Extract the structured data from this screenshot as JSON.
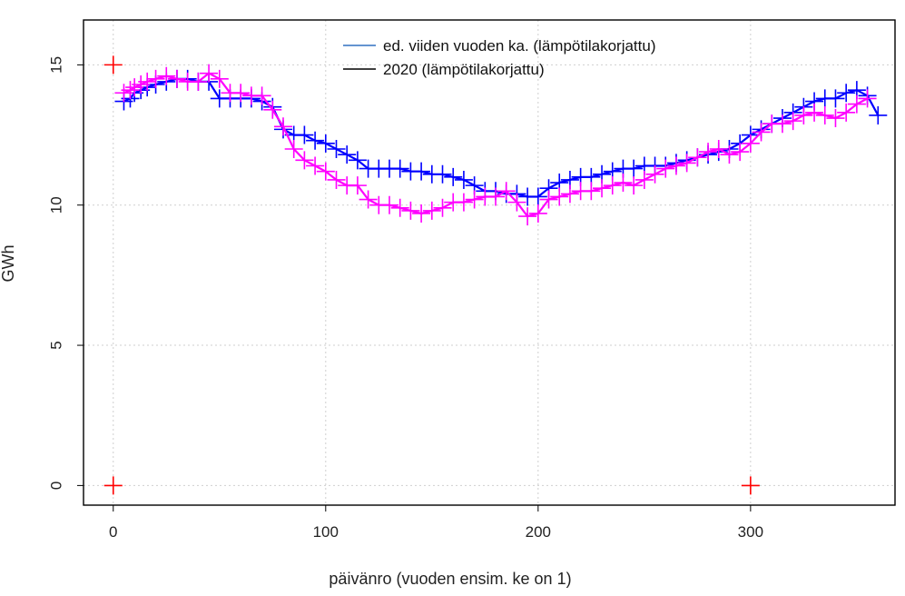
{
  "chart_data": {
    "type": "line",
    "xlabel": "päivänro (vuoden ensim. ke on 1)",
    "ylabel": "GWh",
    "xlim": [
      -14,
      368
    ],
    "ylim": [
      -0.7,
      16.6
    ],
    "xticks": [
      0,
      100,
      200,
      300
    ],
    "xtick_labels": [
      "0",
      "100",
      "200",
      "300"
    ],
    "yticks": [
      0,
      5,
      10,
      15
    ],
    "ytick_labels": [
      "0",
      "5",
      "10",
      "15"
    ],
    "grid": true,
    "legend_position": "top-center",
    "legend": [
      {
        "label": "ed. viiden vuoden ka. (lämpötilakorjattu)",
        "color": "#3070c0"
      },
      {
        "label": "2020 (lämpötilakorjattu)",
        "color": "#000000"
      }
    ],
    "series": [
      {
        "name": "ed. viiden vuoden ka. (lämpötilakorjattu)",
        "color": "#0000ff",
        "marker": "plus",
        "x": [
          5,
          8,
          10,
          13,
          16,
          20,
          25,
          30,
          35,
          40,
          45,
          50,
          55,
          60,
          65,
          70,
          75,
          80,
          85,
          90,
          95,
          100,
          105,
          110,
          115,
          120,
          125,
          130,
          135,
          140,
          145,
          150,
          155,
          160,
          165,
          170,
          175,
          180,
          185,
          190,
          195,
          200,
          205,
          210,
          215,
          220,
          225,
          230,
          235,
          240,
          245,
          250,
          255,
          260,
          265,
          270,
          275,
          280,
          285,
          290,
          295,
          300,
          305,
          310,
          315,
          320,
          325,
          330,
          335,
          340,
          345,
          350,
          355,
          360
        ],
        "y": [
          13.7,
          13.8,
          14.0,
          14.1,
          14.2,
          14.3,
          14.4,
          14.5,
          14.5,
          14.4,
          14.4,
          13.8,
          13.8,
          13.8,
          13.8,
          13.7,
          13.5,
          12.7,
          12.5,
          12.5,
          12.3,
          12.2,
          12.0,
          11.8,
          11.6,
          11.3,
          11.3,
          11.3,
          11.3,
          11.2,
          11.2,
          11.1,
          11.1,
          11.0,
          10.9,
          10.7,
          10.5,
          10.5,
          10.4,
          10.4,
          10.3,
          10.3,
          10.6,
          10.8,
          10.9,
          11.0,
          11.0,
          11.1,
          11.2,
          11.3,
          11.3,
          11.4,
          11.4,
          11.4,
          11.5,
          11.6,
          11.7,
          11.8,
          11.9,
          12.0,
          12.2,
          12.5,
          12.7,
          12.9,
          13.1,
          13.3,
          13.5,
          13.7,
          13.8,
          13.8,
          14.0,
          14.1,
          13.9,
          13.2
        ]
      },
      {
        "name": "2020 (lämpötilakorjattu)",
        "color": "#ff00ff",
        "marker": "plus",
        "x": [
          5,
          8,
          10,
          13,
          16,
          20,
          25,
          30,
          35,
          40,
          45,
          50,
          55,
          60,
          65,
          70,
          75,
          80,
          85,
          90,
          95,
          100,
          105,
          110,
          115,
          120,
          125,
          130,
          135,
          140,
          145,
          150,
          155,
          160,
          165,
          170,
          175,
          180,
          185,
          190,
          195,
          200,
          205,
          210,
          215,
          220,
          225,
          230,
          235,
          240,
          245,
          250,
          255,
          260,
          265,
          270,
          275,
          280,
          285,
          290,
          295,
          300,
          305,
          310,
          315,
          320,
          325,
          330,
          335,
          340,
          345,
          350,
          355
        ],
        "y": [
          14.0,
          14.1,
          14.2,
          14.3,
          14.4,
          14.5,
          14.6,
          14.5,
          14.4,
          14.4,
          14.7,
          14.5,
          14.0,
          14.0,
          13.9,
          13.9,
          13.4,
          12.8,
          12.0,
          11.6,
          11.4,
          11.2,
          10.9,
          10.7,
          10.7,
          10.2,
          10.0,
          10.0,
          9.9,
          9.8,
          9.7,
          9.8,
          9.9,
          10.1,
          10.1,
          10.2,
          10.3,
          10.3,
          10.5,
          10.1,
          9.6,
          9.7,
          10.2,
          10.3,
          10.4,
          10.5,
          10.5,
          10.6,
          10.7,
          10.8,
          10.7,
          10.9,
          11.1,
          11.3,
          11.4,
          11.5,
          11.7,
          11.9,
          12.0,
          11.8,
          11.9,
          12.2,
          12.6,
          12.9,
          12.9,
          13.0,
          13.2,
          13.3,
          13.2,
          13.1,
          13.3,
          13.6,
          13.8
        ]
      },
      {
        "name": "",
        "color": "#ff0000",
        "marker": "plus",
        "line": false,
        "x": [
          0,
          0,
          300
        ],
        "y": [
          15,
          0,
          0
        ]
      }
    ]
  }
}
